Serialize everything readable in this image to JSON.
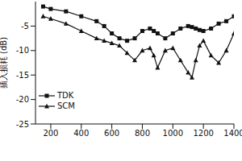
{
  "chart_data": {
    "type": "line",
    "y_label": "插入损耗 (dB)",
    "xlim": [
      100,
      1400
    ],
    "xticks": [
      200,
      400,
      600,
      800,
      1000,
      1200,
      1400
    ],
    "ylim": [
      -25,
      0
    ],
    "yticks": [
      -25,
      -20,
      -15,
      -10,
      -5
    ],
    "legend": "lower left",
    "grid": false,
    "x": [
      150,
      200,
      300,
      400,
      500,
      550,
      600,
      650,
      700,
      750,
      800,
      850,
      875,
      900,
      950,
      1000,
      1050,
      1100,
      1125,
      1150,
      1175,
      1200,
      1250,
      1300,
      1350,
      1400
    ],
    "series": [
      {
        "name": "TDK",
        "color": "#111111",
        "marker": "square",
        "values": [
          -1,
          -1.5,
          -2,
          -3,
          -4,
          -5,
          -6.5,
          -7.5,
          -8,
          -7.5,
          -6,
          -5.5,
          -6,
          -6.5,
          -7.5,
          -6.5,
          -5.5,
          -5,
          -5.2,
          -5.5,
          -5.8,
          -6,
          -5.5,
          -4.5,
          -4,
          -3
        ]
      },
      {
        "name": "SCM",
        "color": "#111111",
        "marker": "triangle",
        "values": [
          -3,
          -3.5,
          -4.5,
          -6,
          -7.5,
          -8,
          -8.5,
          -9,
          -10.5,
          -12,
          -10,
          -9.5,
          -11,
          -13.5,
          -10,
          -9.5,
          -12,
          -14.5,
          -15.5,
          -12,
          -9,
          -8,
          -11,
          -12.5,
          -10,
          -6.5
        ]
      }
    ]
  }
}
